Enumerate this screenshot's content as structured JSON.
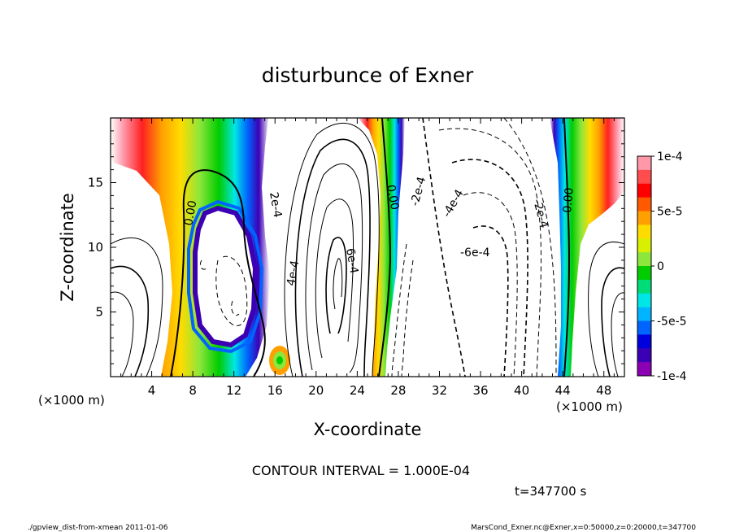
{
  "chart_data": {
    "type": "heatmap",
    "title": "disturbunce of Exner",
    "xlabel": "X-coordinate",
    "ylabel": "Z-coordinate",
    "x_unit": "(×1000 m)",
    "y_unit": "(×1000 m)",
    "x_range": [
      0,
      50
    ],
    "y_range": [
      0,
      20
    ],
    "x_ticks": [
      "4",
      "8",
      "12",
      "16",
      "20",
      "24",
      "28",
      "32",
      "36",
      "40",
      "44",
      "48"
    ],
    "y_ticks": [
      "5",
      "10",
      "15"
    ],
    "colorbar": {
      "min": -0.0001,
      "max": 0.0001,
      "labels": [
        "1e-4",
        "5e-5",
        "0",
        "-5e-5",
        "-1e-4"
      ],
      "colors": [
        "#ff99aa",
        "#ff4d4d",
        "#ff0000",
        "#ff5a00",
        "#ffa000",
        "#ffdc00",
        "#d8f000",
        "#8ce63c",
        "#00cc00",
        "#00dc78",
        "#00e6e6",
        "#00b4ff",
        "#0064ff",
        "#0000dc",
        "#3c00b4",
        "#8c00b4"
      ]
    },
    "contour_labels": [
      "0.00",
      "2e-4",
      "4e-4",
      "6e-4",
      "0.00",
      "-2e-4",
      "-4e-4",
      "-6e-4",
      "-2e-4",
      "0.00"
    ],
    "contour_interval_text": "CONTOUR INTERVAL = 1.000E-04",
    "time_text": "t=347700 s"
  },
  "footer": {
    "left": "./gpview_dist-from-xmean  2011-01-06",
    "right": "MarsCond_Exner.nc@Exner,x=0:50000,z=0:20000,t=347700"
  }
}
